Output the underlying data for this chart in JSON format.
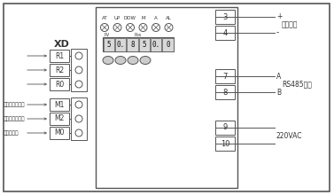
{
  "bg_color": "#ffffff",
  "lc": "#555555",
  "tc": "#333333",
  "xd_label": "XD",
  "r_labels": [
    "R1",
    "R2",
    "R0"
  ],
  "m_labels": [
    "M1",
    "M2",
    "M0"
  ],
  "left_annotations": [
    "电机正转（相）",
    "电机反转（相）",
    "电机（中）"
  ],
  "indicator_labels": [
    "AT",
    "UP",
    "DOW",
    "M",
    "A",
    "AL"
  ],
  "display_digits": "5|0.|8|5|0.|0",
  "btn_count": 4,
  "terminals_34": [
    "3",
    "4"
  ],
  "terminals_78": [
    "7",
    "8"
  ],
  "terminals_910": [
    "9",
    "10"
  ],
  "label_feedback": "反馈输出",
  "label_rs485": "RS485通讯",
  "label_220vac": "220VAC",
  "label_A": "A",
  "label_B": "B",
  "label_plus": "+",
  "label_minus": "-"
}
